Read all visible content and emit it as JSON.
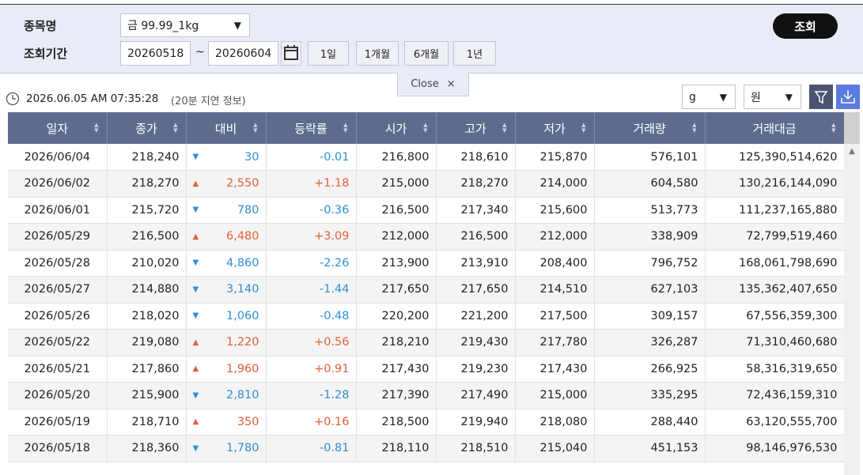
{
  "search": {
    "item_label": "종목명",
    "item_value": "금 99.99_1kg",
    "period_label": "조회기간",
    "start_date": "20260518",
    "tilde": "~",
    "end_date": "20260604",
    "range_buttons": [
      "1일",
      "1개월",
      "6개월",
      "1년"
    ],
    "submit": "조회",
    "close": "Close"
  },
  "info": {
    "timestamp": "2026.06.05 AM 07:35:28",
    "delay_note": "(20분 지연 정보)",
    "unit_select": "g",
    "currency_select": "원"
  },
  "table": {
    "headers": [
      "일자",
      "종가",
      "대비",
      "등락률",
      "시가",
      "고가",
      "저가",
      "거래량",
      "거래대금"
    ],
    "rows": [
      [
        "2026/06/04",
        "218,240",
        "▼",
        "30",
        "-0.01",
        "216,800",
        "218,610",
        "215,870",
        "576,101",
        "125,390,514,620"
      ],
      [
        "2026/06/02",
        "218,270",
        "▲",
        "2,550",
        "+1.18",
        "215,000",
        "218,270",
        "214,000",
        "604,580",
        "130,216,144,090"
      ],
      [
        "2026/06/01",
        "215,720",
        "▼",
        "780",
        "-0.36",
        "216,500",
        "217,340",
        "215,600",
        "513,773",
        "111,237,165,880"
      ],
      [
        "2026/05/29",
        "216,500",
        "▲",
        "6,480",
        "+3.09",
        "212,000",
        "216,500",
        "212,000",
        "338,909",
        "72,799,519,460"
      ],
      [
        "2026/05/28",
        "210,020",
        "▼",
        "4,860",
        "-2.26",
        "213,900",
        "213,910",
        "208,400",
        "796,752",
        "168,061,798,690"
      ],
      [
        "2026/05/27",
        "214,880",
        "▼",
        "3,140",
        "-1.44",
        "217,650",
        "217,650",
        "214,510",
        "627,103",
        "135,362,407,650"
      ],
      [
        "2026/05/26",
        "218,020",
        "▼",
        "1,060",
        "-0.48",
        "220,200",
        "221,200",
        "217,500",
        "309,157",
        "67,556,359,300"
      ],
      [
        "2026/05/22",
        "219,080",
        "▲",
        "1,220",
        "+0.56",
        "218,210",
        "219,430",
        "217,780",
        "326,287",
        "71,310,460,680"
      ],
      [
        "2026/05/21",
        "217,860",
        "▲",
        "1,960",
        "+0.91",
        "217,430",
        "219,230",
        "217,430",
        "266,925",
        "58,316,319,650"
      ],
      [
        "2026/05/20",
        "215,900",
        "▼",
        "2,810",
        "-1.28",
        "217,390",
        "217,490",
        "215,000",
        "335,295",
        "72,436,159,310"
      ],
      [
        "2026/05/19",
        "218,710",
        "▲",
        "350",
        "+0.16",
        "218,500",
        "219,940",
        "218,080",
        "288,440",
        "63,120,555,700"
      ],
      [
        "2026/05/18",
        "218,360",
        "▼",
        "1,780",
        "-0.81",
        "218,110",
        "218,510",
        "215,040",
        "451,153",
        "98,146,976,530"
      ]
    ]
  }
}
